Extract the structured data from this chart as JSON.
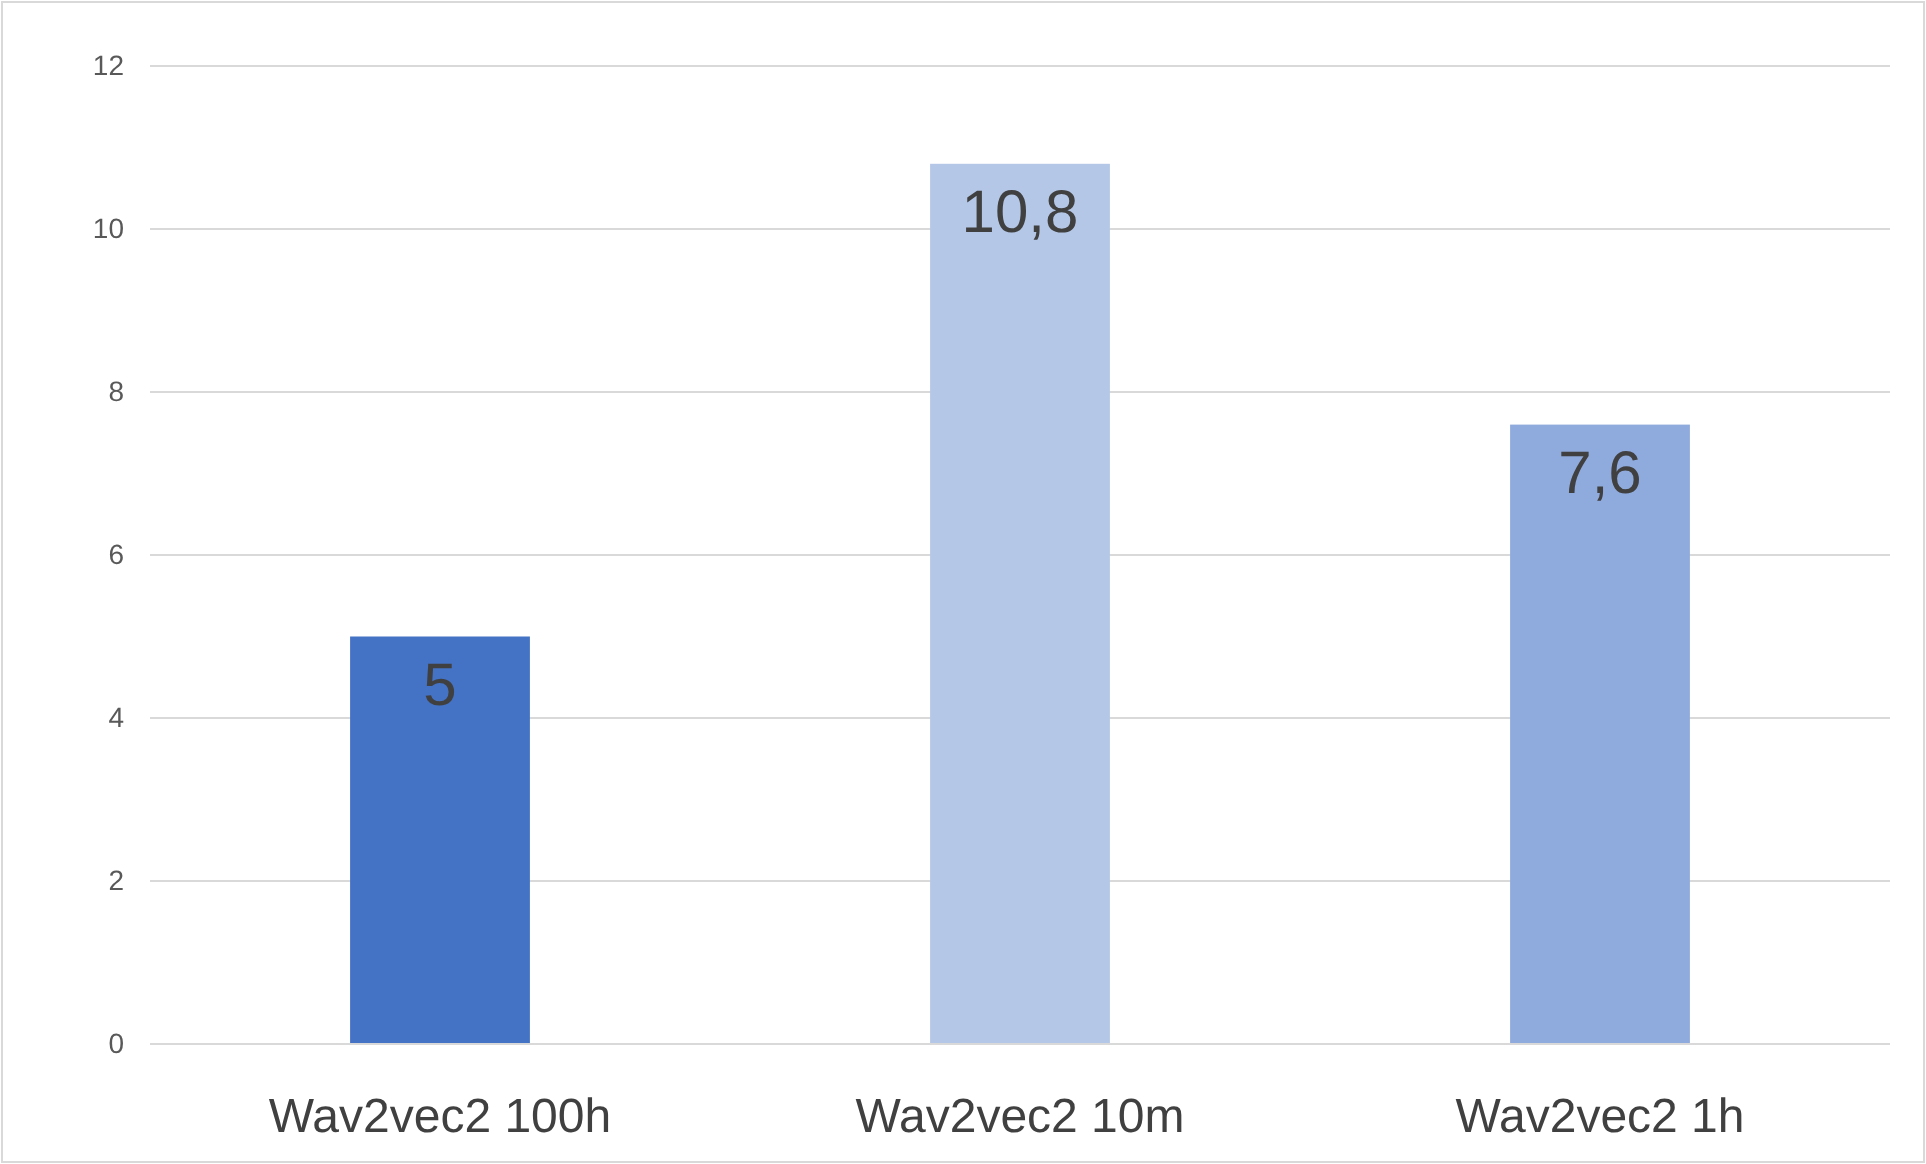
{
  "chart_data": {
    "type": "bar",
    "categories": [
      "Wav2vec2 100h",
      "Wav2vec2 10m",
      "Wav2vec2 1h"
    ],
    "values": [
      5,
      10.8,
      7.6
    ],
    "colors": [
      "#4472c4",
      "#b4c7e7",
      "#8faadc"
    ],
    "value_labels": [
      "5",
      "10,8",
      "7,6"
    ],
    "ylim": [
      0,
      12
    ],
    "yticks": [
      0,
      2,
      4,
      6,
      8,
      10,
      12
    ],
    "grid": "y"
  }
}
